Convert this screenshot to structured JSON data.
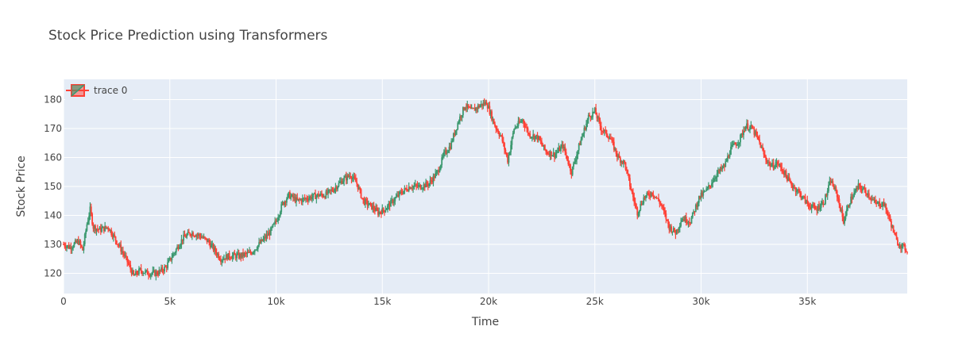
{
  "chart_data": {
    "type": "candlestick",
    "title": "Stock Price Prediction using Transformers",
    "xlabel": "Time",
    "ylabel": "Stock Price",
    "xlim": [
      0,
      39700
    ],
    "ylim": [
      113,
      187
    ],
    "x_ticks": [
      0,
      5000,
      10000,
      15000,
      20000,
      25000,
      30000,
      35000
    ],
    "x_tick_labels": [
      "0",
      "5k",
      "10k",
      "15k",
      "20k",
      "25k",
      "30k",
      "35k"
    ],
    "y_ticks": [
      120,
      130,
      140,
      150,
      160,
      170,
      180
    ],
    "grid": true,
    "legend": {
      "position": "top-left",
      "entries": [
        "trace 0"
      ]
    },
    "colors": {
      "increasing": "#3D9970",
      "decreasing": "#FF4136",
      "plot_bg": "#E5ECF6",
      "grid": "#ffffff",
      "text": "#444444"
    },
    "series": [
      {
        "name": "trace 0",
        "anchors": [
          [
            0,
            130
          ],
          [
            300,
            129
          ],
          [
            700,
            131
          ],
          [
            900,
            128
          ],
          [
            1100,
            137
          ],
          [
            1250,
            142
          ],
          [
            1400,
            136
          ],
          [
            1700,
            135
          ],
          [
            2100,
            136
          ],
          [
            2500,
            131
          ],
          [
            2800,
            127
          ],
          [
            3000,
            124
          ],
          [
            3300,
            119
          ],
          [
            3600,
            121
          ],
          [
            4000,
            120
          ],
          [
            4400,
            120
          ],
          [
            4800,
            122
          ],
          [
            5200,
            127
          ],
          [
            5600,
            132
          ],
          [
            6000,
            134
          ],
          [
            6400,
            133
          ],
          [
            6800,
            131
          ],
          [
            7100,
            128
          ],
          [
            7400,
            125
          ],
          [
            7800,
            126
          ],
          [
            8300,
            126
          ],
          [
            8800,
            127
          ],
          [
            9200,
            130
          ],
          [
            9700,
            134
          ],
          [
            10000,
            138
          ],
          [
            10300,
            144
          ],
          [
            10600,
            147
          ],
          [
            11000,
            145
          ],
          [
            11500,
            146
          ],
          [
            12000,
            147
          ],
          [
            12300,
            147
          ],
          [
            12700,
            149
          ],
          [
            13100,
            152
          ],
          [
            13500,
            154
          ],
          [
            13800,
            151
          ],
          [
            14100,
            145
          ],
          [
            14500,
            143
          ],
          [
            14800,
            141
          ],
          [
            15100,
            142
          ],
          [
            15500,
            145
          ],
          [
            15900,
            148
          ],
          [
            16300,
            150
          ],
          [
            16800,
            150
          ],
          [
            17200,
            151
          ],
          [
            17600,
            155
          ],
          [
            17900,
            161
          ],
          [
            18200,
            164
          ],
          [
            18600,
            173
          ],
          [
            18900,
            178
          ],
          [
            19200,
            176
          ],
          [
            19600,
            178
          ],
          [
            19900,
            179
          ],
          [
            20300,
            171
          ],
          [
            20600,
            167
          ],
          [
            20900,
            159
          ],
          [
            21200,
            170
          ],
          [
            21600,
            173
          ],
          [
            21900,
            168
          ],
          [
            22300,
            167
          ],
          [
            22700,
            162
          ],
          [
            23100,
            161
          ],
          [
            23500,
            164
          ],
          [
            23900,
            155
          ],
          [
            24300,
            165
          ],
          [
            24700,
            174
          ],
          [
            25000,
            176
          ],
          [
            25300,
            170
          ],
          [
            25700,
            167
          ],
          [
            26100,
            160
          ],
          [
            26400,
            158
          ],
          [
            26700,
            149
          ],
          [
            27000,
            141
          ],
          [
            27300,
            146
          ],
          [
            27700,
            148
          ],
          [
            28100,
            144
          ],
          [
            28500,
            136
          ],
          [
            28800,
            134
          ],
          [
            29100,
            139
          ],
          [
            29500,
            138
          ],
          [
            29900,
            146
          ],
          [
            30300,
            149
          ],
          [
            30700,
            154
          ],
          [
            31100,
            157
          ],
          [
            31400,
            163
          ],
          [
            31800,
            166
          ],
          [
            32100,
            171
          ],
          [
            32400,
            170
          ],
          [
            32700,
            166
          ],
          [
            33000,
            160
          ],
          [
            33300,
            157
          ],
          [
            33600,
            158
          ],
          [
            33900,
            155
          ],
          [
            34200,
            151
          ],
          [
            34600,
            148
          ],
          [
            35000,
            144
          ],
          [
            35400,
            142
          ],
          [
            35800,
            145
          ],
          [
            36100,
            152
          ],
          [
            36400,
            147
          ],
          [
            36700,
            138
          ],
          [
            37000,
            145
          ],
          [
            37400,
            150
          ],
          [
            37800,
            148
          ],
          [
            38200,
            144
          ],
          [
            38600,
            144
          ],
          [
            38900,
            138
          ],
          [
            39200,
            131
          ],
          [
            39500,
            129
          ],
          [
            39700,
            128
          ]
        ]
      }
    ]
  }
}
